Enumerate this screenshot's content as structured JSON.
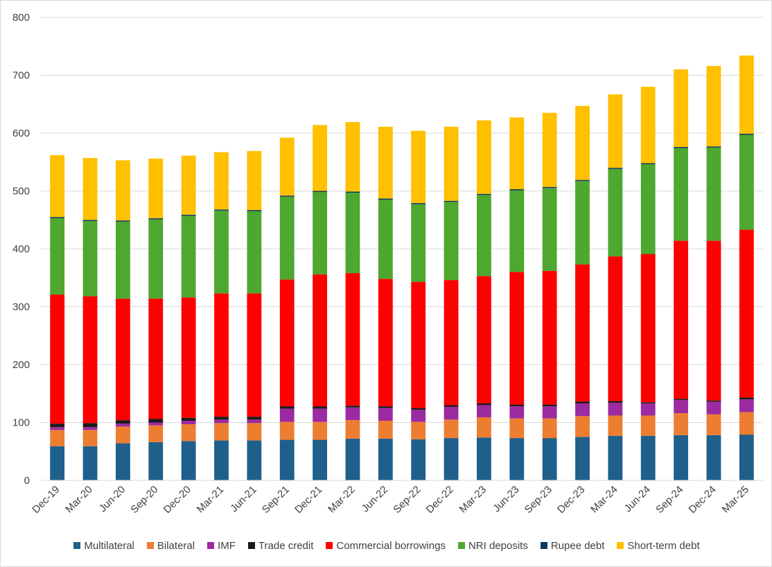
{
  "chart_data": {
    "type": "bar",
    "stacked": true,
    "title": "",
    "xlabel": "",
    "ylabel": "",
    "ylim": [
      0,
      800
    ],
    "yticks": [
      0,
      100,
      200,
      300,
      400,
      500,
      600,
      700,
      800
    ],
    "grid": true,
    "legend_position": "bottom",
    "categories": [
      "Dec-19",
      "Mar-20",
      "Jun-20",
      "Sep-20",
      "Dec-20",
      "Mar-21",
      "Jun-21",
      "Sep-21",
      "Dec-21",
      "Mar-22",
      "Jun-22",
      "Sep-22",
      "Dec-22",
      "Mar-23",
      "Jun-23",
      "Sep-23",
      "Dec-23",
      "Mar-24",
      "Jun-24",
      "Sep-24",
      "Dec-24",
      "Mar-25"
    ],
    "series": [
      {
        "name": "Multilateral",
        "color": "#1f5f8b",
        "values": [
          59,
          59,
          64,
          66,
          68,
          69,
          69,
          70,
          70,
          72,
          72,
          71,
          73,
          74,
          73,
          73,
          75,
          77,
          77,
          78,
          78,
          79
        ]
      },
      {
        "name": "Bilateral",
        "color": "#ed7d31",
        "values": [
          28,
          28,
          29,
          29,
          29,
          30,
          30,
          31,
          31,
          32,
          31,
          30,
          32,
          35,
          34,
          34,
          36,
          35,
          35,
          38,
          36,
          39
        ]
      },
      {
        "name": "IMF",
        "color": "#9c2aa0",
        "values": [
          5,
          5,
          5,
          5,
          6,
          6,
          6,
          23,
          23,
          22,
          22,
          21,
          22,
          21,
          21,
          21,
          22,
          22,
          21,
          23,
          22,
          22
        ]
      },
      {
        "name": "Trade credit",
        "color": "#1a1a1a",
        "values": [
          6,
          7,
          6,
          6,
          5,
          5,
          5,
          4,
          4,
          3,
          3,
          3,
          3,
          3,
          3,
          3,
          3,
          3,
          2,
          2,
          2,
          3
        ]
      },
      {
        "name": "Commercial borrowings",
        "color": "#ff0000",
        "values": [
          223,
          219,
          210,
          208,
          208,
          213,
          213,
          219,
          228,
          229,
          220,
          218,
          216,
          220,
          229,
          231,
          237,
          250,
          256,
          273,
          276,
          290
        ]
      },
      {
        "name": "NRI deposits",
        "color": "#4ea72e",
        "values": [
          132,
          130,
          133,
          137,
          141,
          143,
          142,
          143,
          142,
          139,
          137,
          134,
          135,
          140,
          141,
          143,
          144,
          151,
          155,
          160,
          161,
          164
        ]
      },
      {
        "name": "Rupee debt",
        "color": "#0e3a5c",
        "values": [
          2,
          2,
          2,
          2,
          2,
          2,
          2,
          2,
          2,
          2,
          2,
          2,
          2,
          2,
          2,
          2,
          2,
          2,
          2,
          2,
          2,
          2
        ]
      },
      {
        "name": "Short-term debt",
        "color": "#ffc000",
        "values": [
          107,
          107,
          104,
          103,
          102,
          99,
          102,
          100,
          114,
          120,
          124,
          125,
          128,
          127,
          124,
          128,
          128,
          127,
          132,
          134,
          139,
          135
        ]
      }
    ]
  }
}
